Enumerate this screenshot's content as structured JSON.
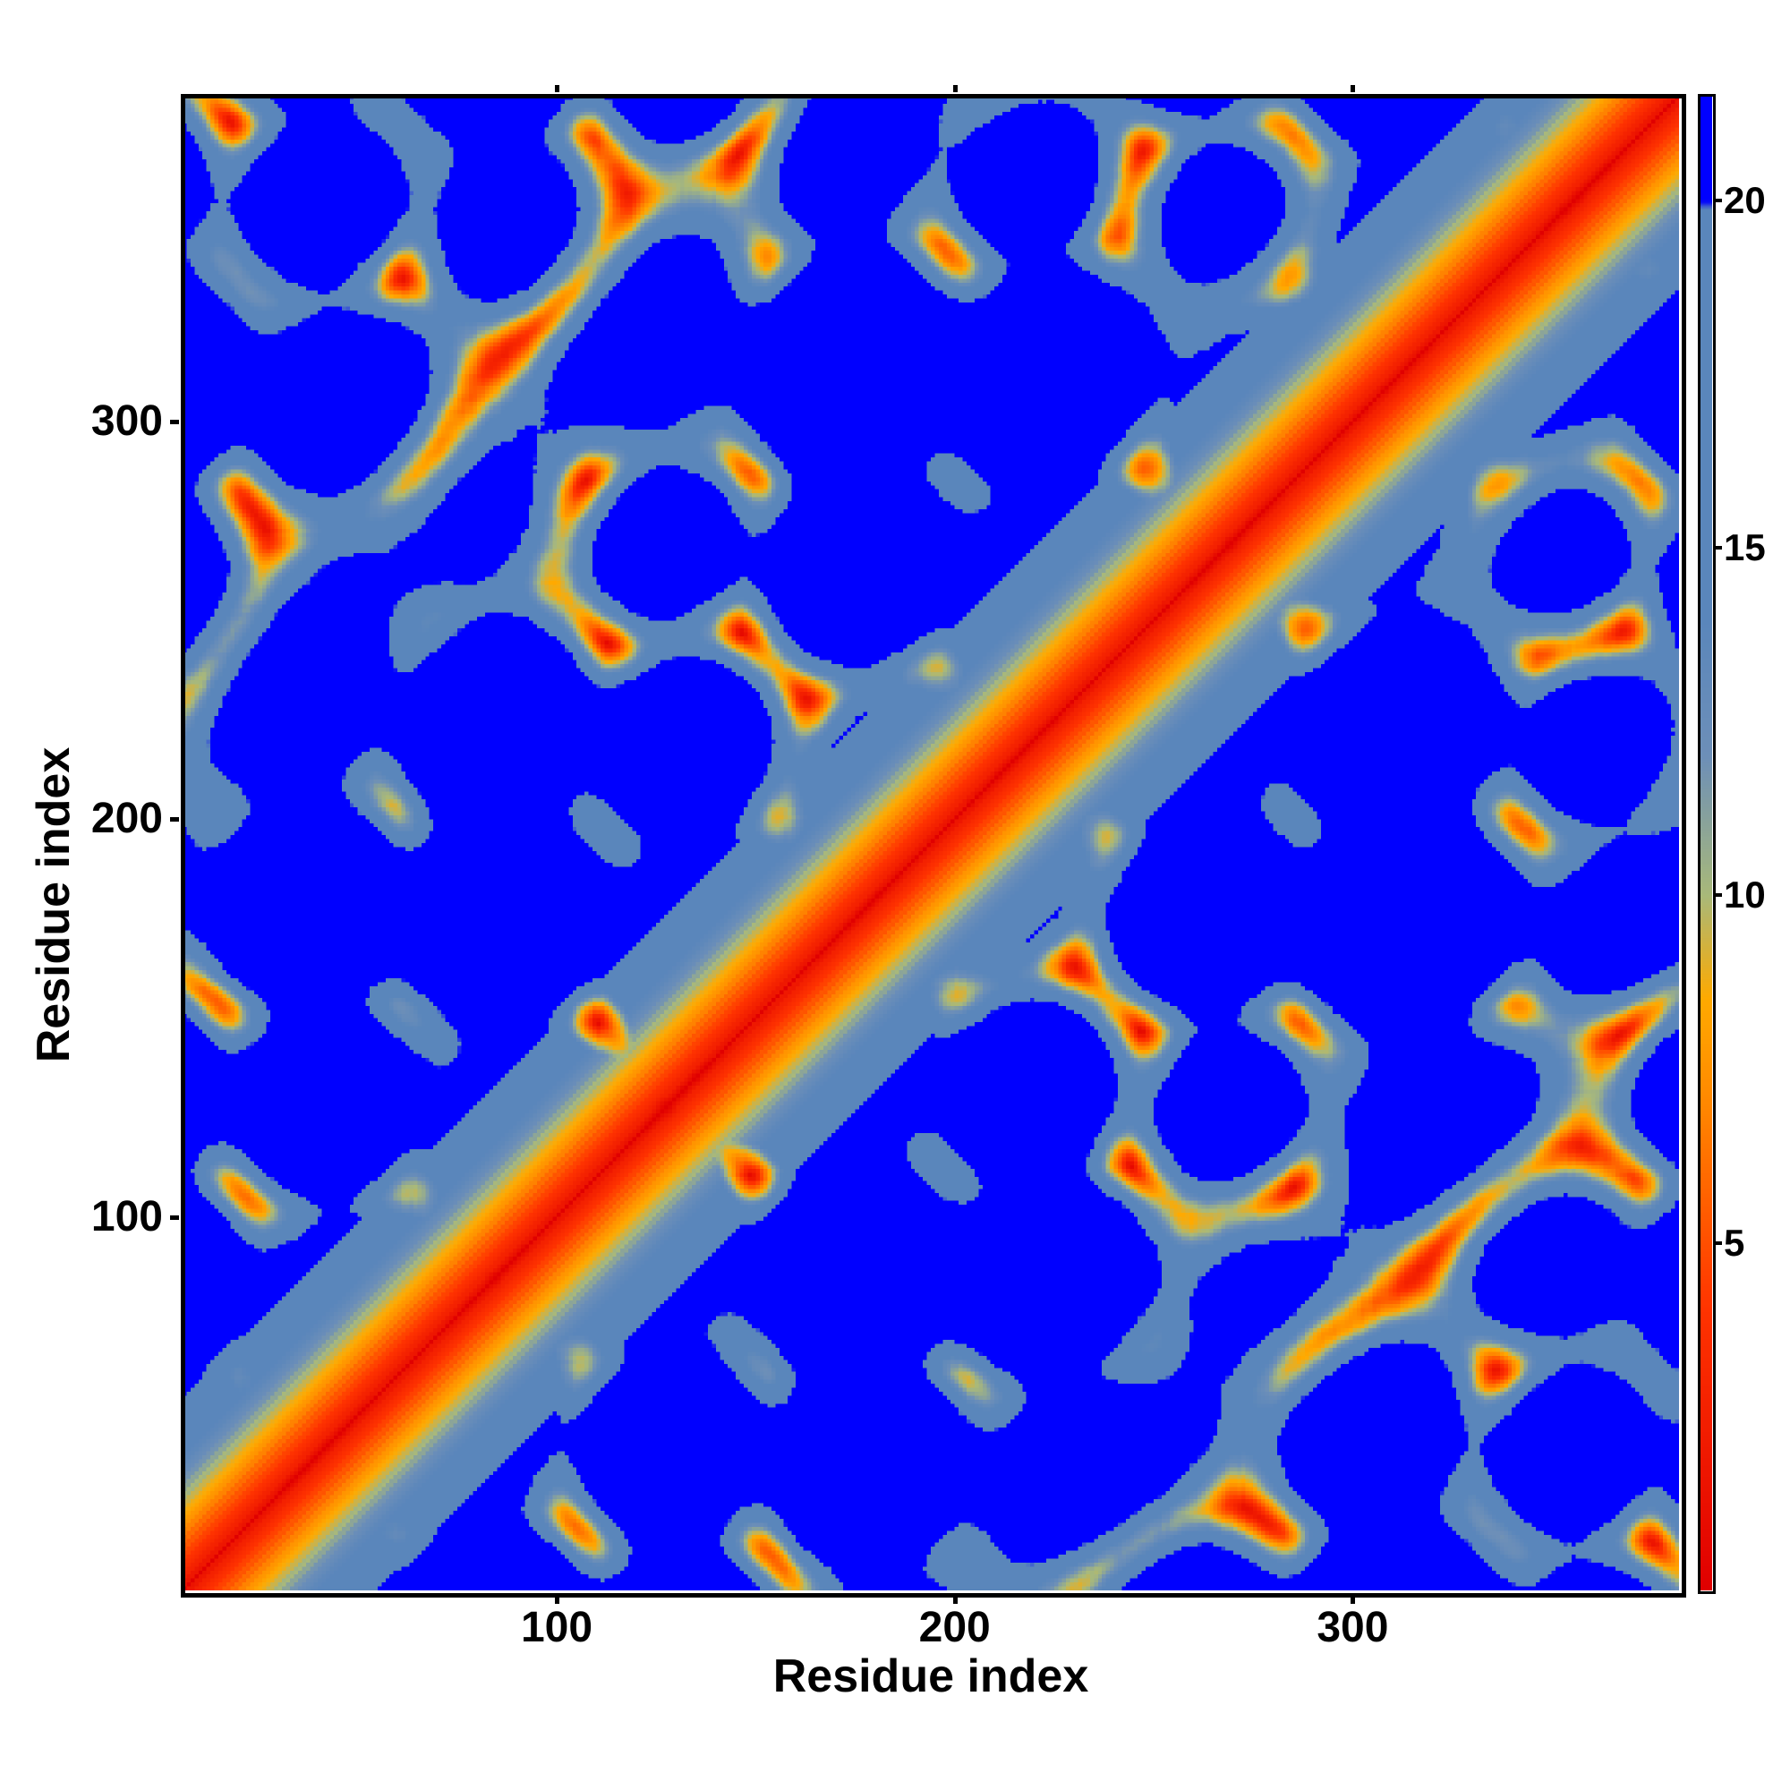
{
  "chart_data": {
    "type": "heatmap",
    "title": "",
    "xlabel": "Residue index",
    "ylabel": "Residue index",
    "xlim": [
      6,
      382
    ],
    "ylim": [
      6,
      382
    ],
    "x_ticks": [
      100,
      200,
      300
    ],
    "y_ticks": [
      100,
      200,
      300
    ],
    "value_unit": "",
    "colorbar": {
      "ticks": [
        5,
        10,
        15,
        20
      ],
      "range": [
        0,
        21.5
      ],
      "stops": [
        {
          "value": 0,
          "color": "#e00000"
        },
        {
          "value": 4,
          "color": "#ff3300"
        },
        {
          "value": 7,
          "color": "#ff8800"
        },
        {
          "value": 8.5,
          "color": "#ffaa00"
        },
        {
          "value": 10,
          "color": "#a9b97a"
        },
        {
          "value": 12,
          "color": "#6d8fb8"
        },
        {
          "value": 14,
          "color": "#5a86bb"
        },
        {
          "value": 19.9,
          "color": "#5a86bb"
        },
        {
          "value": 20,
          "color": "#0000ff"
        },
        {
          "value": 21.5,
          "color": "#0000ff"
        }
      ]
    },
    "grid": false,
    "legend": "colorbar-right"
  }
}
